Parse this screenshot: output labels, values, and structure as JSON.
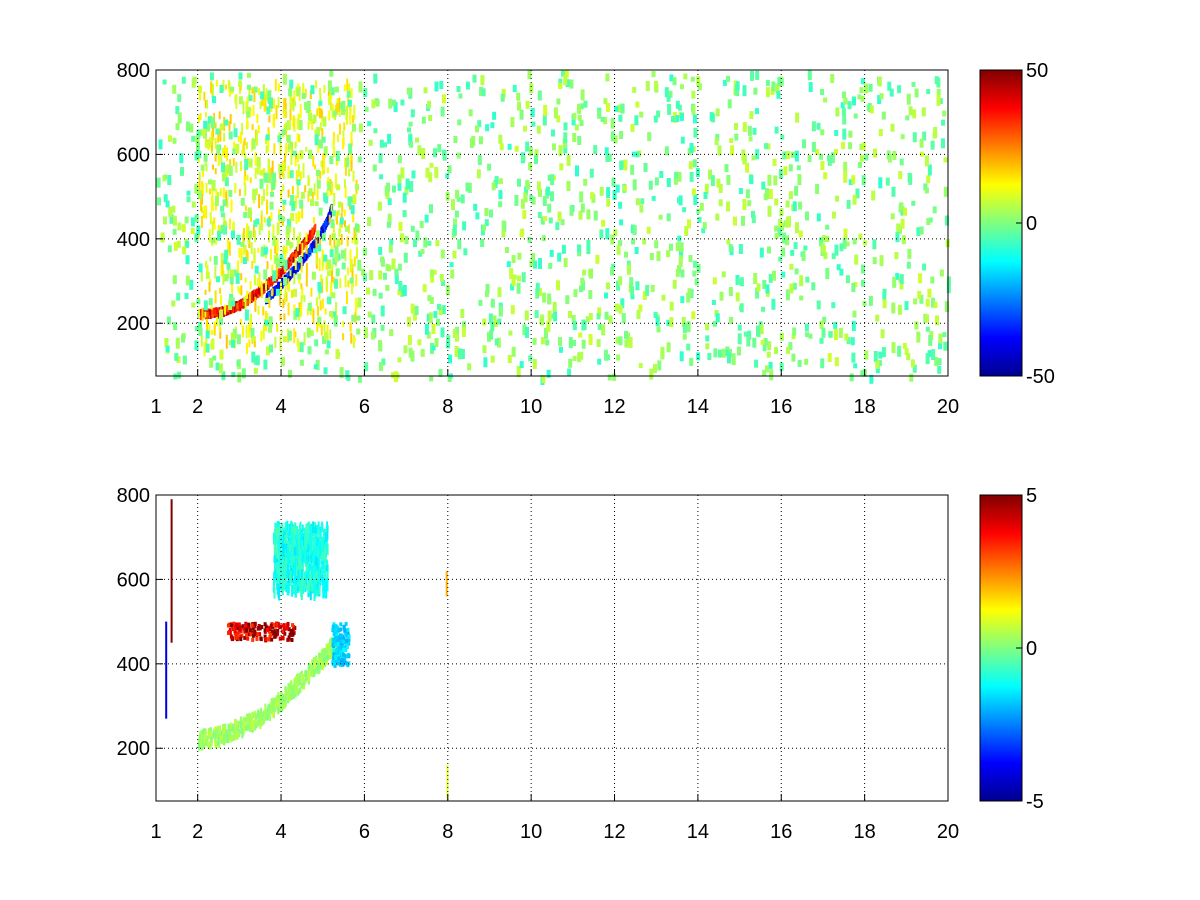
{
  "chart_data": [
    {
      "type": "heatmap",
      "title": "",
      "xlabel": "",
      "ylabel": "",
      "xlim": [
        1,
        20
      ],
      "ylim": [
        75,
        800
      ],
      "xticks": [
        1,
        2,
        4,
        6,
        8,
        10,
        12,
        14,
        16,
        18,
        20
      ],
      "xtick_labels": [
        "1",
        "2",
        "4",
        "6",
        "8",
        "10",
        "12",
        "14",
        "16",
        "18",
        "20"
      ],
      "yticks": [
        200,
        400,
        600,
        800
      ],
      "ytick_labels": [
        "200",
        "400",
        "600",
        "800"
      ],
      "grid": true,
      "colormap": "jet",
      "clim": [
        -50,
        50
      ],
      "colorbar_ticks": [
        50,
        0,
        -50
      ],
      "colorbar_labels": [
        "50",
        "0",
        "-50"
      ],
      "features": [
        {
          "kind": "ridge",
          "sign": "positive",
          "value": 45,
          "points": [
            [
              2.0,
              228
            ],
            [
              2.5,
              232
            ],
            [
              3.0,
              250
            ],
            [
              3.5,
              285
            ],
            [
              4.0,
              330
            ],
            [
              4.4,
              380
            ],
            [
              4.8,
              430
            ]
          ]
        },
        {
          "kind": "ridge",
          "sign": "negative",
          "value": -45,
          "points": [
            [
              3.6,
              262
            ],
            [
              4.0,
              300
            ],
            [
              4.4,
              345
            ],
            [
              4.8,
              395
            ],
            [
              5.1,
              450
            ],
            [
              5.2,
              480
            ]
          ]
        },
        {
          "kind": "cloud",
          "value": 12,
          "x_range": [
            2.0,
            5.8
          ],
          "y_range": [
            150,
            780
          ]
        },
        {
          "kind": "noise",
          "value_range": [
            -8,
            8
          ],
          "x_range": [
            1,
            20
          ],
          "y_range": [
            75,
            800
          ]
        }
      ]
    },
    {
      "type": "heatmap",
      "title": "",
      "xlabel": "",
      "ylabel": "",
      "xlim": [
        1,
        20
      ],
      "ylim": [
        75,
        800
      ],
      "xticks": [
        1,
        2,
        4,
        6,
        8,
        10,
        12,
        14,
        16,
        18,
        20
      ],
      "xtick_labels": [
        "1",
        "2",
        "4",
        "6",
        "8",
        "10",
        "12",
        "14",
        "16",
        "18",
        "20"
      ],
      "yticks": [
        200,
        400,
        600,
        800
      ],
      "ytick_labels": [
        "200",
        "400",
        "600",
        "800"
      ],
      "grid": true,
      "colormap": "jet",
      "clim": [
        -5,
        5
      ],
      "colorbar_ticks": [
        5,
        0,
        -5
      ],
      "colorbar_labels": [
        "5",
        "0",
        "-5"
      ],
      "features": [
        {
          "kind": "band",
          "value": 0.3,
          "points": [
            [
              2.0,
              225
            ],
            [
              2.5,
              235
            ],
            [
              3.0,
              255
            ],
            [
              3.5,
              280
            ],
            [
              4.0,
              320
            ],
            [
              4.5,
              370
            ],
            [
              5.0,
              420
            ],
            [
              5.3,
              460
            ]
          ]
        },
        {
          "kind": "patch",
          "value": -1.8,
          "x_range": [
            5.2,
            5.6
          ],
          "y_range": [
            400,
            500
          ]
        },
        {
          "kind": "patch",
          "value": 4.5,
          "x_range": [
            2.7,
            4.3
          ],
          "y_range": [
            460,
            500
          ]
        },
        {
          "kind": "cloud",
          "value": -1.0,
          "x_range": [
            3.8,
            5.1
          ],
          "y_range": [
            580,
            740
          ]
        },
        {
          "kind": "line",
          "value": 5,
          "x": 1.35,
          "y_range": [
            450,
            790
          ]
        },
        {
          "kind": "line",
          "value": -4,
          "x": 1.22,
          "y_range": [
            270,
            500
          ]
        },
        {
          "kind": "line",
          "value": 2,
          "x": 7.95,
          "y_range": [
            560,
            620
          ]
        },
        {
          "kind": "line",
          "value": 1,
          "x": 7.97,
          "y_range": [
            80,
            160
          ]
        }
      ]
    }
  ]
}
